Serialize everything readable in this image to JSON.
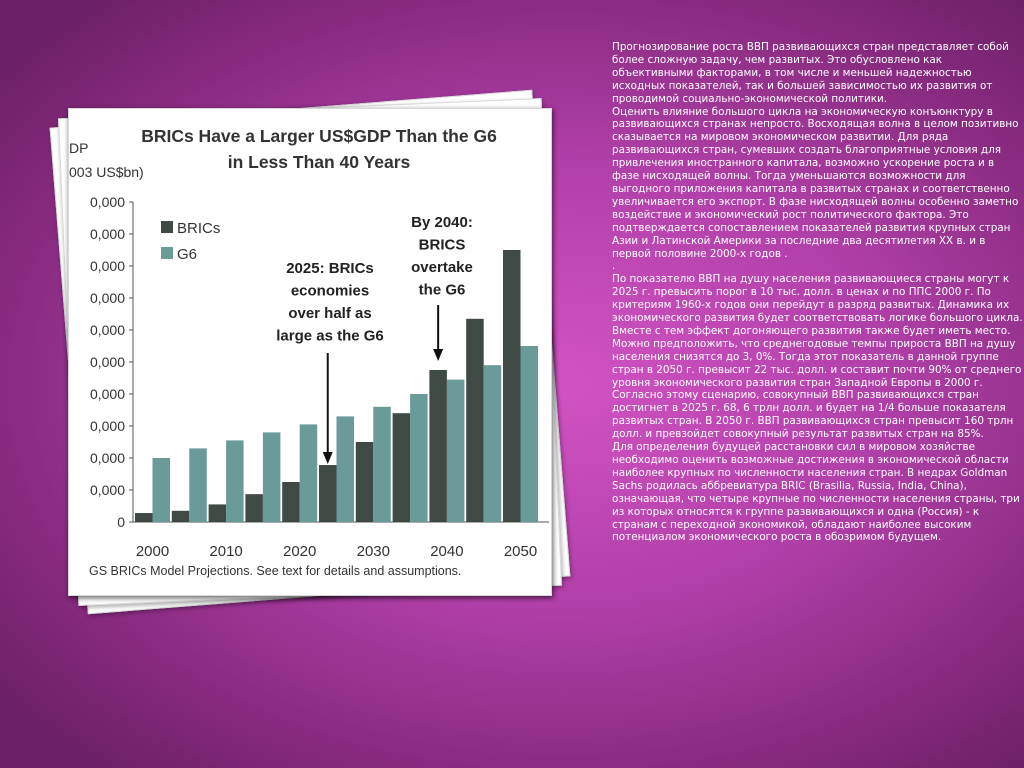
{
  "chart_data": {
    "type": "bar",
    "title": "BRICs Have a Larger US$GDP Than the G6 in Less Than 40 Years",
    "title_lines": [
      "BRICs Have a Larger US$GDP Than the G6",
      "in Less Than 40 Years"
    ],
    "ylabel_lines": [
      "DP",
      "003 US$bn)"
    ],
    "categories": [
      "2000",
      "2005",
      "2010",
      "2015",
      "2020",
      "2025",
      "2030",
      "2035",
      "2040",
      "2045",
      "2050"
    ],
    "x_tick_labels": [
      "2000",
      "2010",
      "2020",
      "2030",
      "2040",
      "2050"
    ],
    "y_tick_labels": [
      "0",
      "0,000",
      "0,000",
      "0,000",
      "0,000",
      "0,000",
      "0,000",
      "0,000",
      "0,000",
      "0,000",
      "0,000"
    ],
    "ylim": [
      0,
      100000
    ],
    "series": [
      {
        "name": "BRICs",
        "color": "#3f4a45",
        "values": [
          2800,
          3500,
          5500,
          8700,
          12500,
          17800,
          25000,
          34000,
          47500,
          63500,
          85000
        ]
      },
      {
        "name": "G6",
        "color": "#6a9b99",
        "values": [
          20000,
          23000,
          25500,
          28000,
          30500,
          33000,
          36000,
          40000,
          44500,
          49000,
          55000
        ]
      }
    ],
    "legend": [
      "BRICs",
      "G6"
    ],
    "annotations": [
      {
        "lines": [
          "2025: BRICs",
          "economies",
          "over half as",
          "large as the G6"
        ],
        "target": "2025"
      },
      {
        "lines": [
          "By 2040:",
          "BRICS",
          "overtake",
          "the G6"
        ],
        "target": "2040"
      }
    ],
    "footnote": "GS BRICs Model Projections. See text for details and assumptions."
  },
  "paragraphs": [
    "Прогнозирование роста ВВП развивающихся стран представляет собой более сложную задачу, чем развитых. Это обусловлено как объективными факторами, в том числе и меньшей надежностью исходных показателей, так и большей зависимостью их развития от проводимой социально-экономической политики.",
    "Оценить влияние большого цикла на экономическую конъюнктуру в развивающихся странах непросто. Восходящая волна в целом позитивно сказывается на мировом экономическом развитии. Для ряда развивающихся стран, сумевших создать благоприятные условия для привлечения иностранного капитала, возможно ускорение роста и в фазе нисходящей волны. Тогда уменьшаются возможности для выгодного приложения капитала в развитых странах и соответственно увеличивается его экспорт. В фазе нисходящей волны особенно заметно воздействие и экономический рост политического фактора. Это подтверждается сопоставлением показателей развития крупных стран Азии и Латинской Америки за последние два десятилетия XX в. и в первой половине 2000-х годов .",
    ".",
    "По показателю ВВП на душу населения развивающиеся страны могут к 2025 г. превысить порог в 10 тыс. долл. в ценах и по ППС 2000 г. По критериям 1960-х годов они перейдут в разряд развитых. Динамика их экономического развития будет соответствовать логике большого цикла. Вместе с тем эффект догоняющего развития также будет иметь место. Можно предположить, что среднегодовые темпы прироста ВВП на душу населения снизятся до 3, 0%. Тогда этот показатель в данной группе стран в 2050 г. превысит 22 тыс. долл. и составит почти 90% от среднего уровня экономического развития стран Западной Европы в 2000 г. Согласно этому сценарию, совокупный ВВП развивающихся стран достигнет в 2025 г. 68, 6 трлн долл. и будет на 1/4 больше показателя развитых стран. В 2050 г. ВВП развивающихся стран превысит 160 трлн долл. и превзойдет совокупный результат развитых стран на 85%.",
    "Для определения будущей расстановки сил в мировом хозяйстве необходимо оценить возможные достижения в экономической области наиболее крупных по численности населения стран. В недрах Goldman Sachs родилась аббревиатура BRIC (Brasilia, Russia, India, China), означающая, что четыре крупные по численности населения страны, три из которых относятся к группе развивающихся и одна (Россия) - к странам с переходной экономикой, обладают наиболее высоким потенциалом экономического роста в обозримом будущем."
  ]
}
